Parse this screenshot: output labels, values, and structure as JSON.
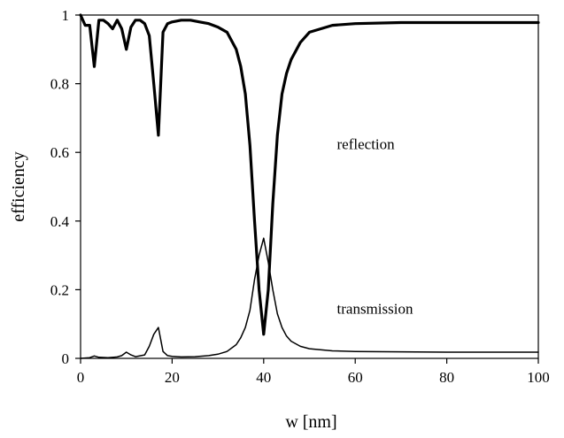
{
  "chart_data": {
    "type": "line",
    "xlabel": "w [nm]",
    "ylabel": "efficiency",
    "xlim": [
      0,
      100
    ],
    "ylim": [
      0,
      1
    ],
    "xticks": [
      0,
      20,
      40,
      60,
      80,
      100
    ],
    "yticks": [
      0,
      0.2,
      0.4,
      0.6,
      0.8,
      1
    ],
    "ytick_labels": [
      "0",
      "0.2",
      "0.4",
      "0.6",
      "0.8",
      "1"
    ],
    "grid": false,
    "legend": "none",
    "annotations": [
      {
        "text": "reflection",
        "x": 56,
        "y": 0.61
      },
      {
        "text": "transmission",
        "x": 56,
        "y": 0.13
      }
    ],
    "series": [
      {
        "color": "#000000",
        "line_weight": "thick",
        "x": [
          0,
          1,
          2,
          3,
          4,
          5,
          6,
          7,
          8,
          9,
          10,
          11,
          12,
          13,
          14,
          15,
          16,
          17,
          18,
          19,
          20,
          22,
          24,
          26,
          28,
          30,
          32,
          34,
          35,
          36,
          37,
          38,
          39,
          40,
          41,
          42,
          43,
          44,
          45,
          46,
          48,
          50,
          55,
          60,
          70,
          80,
          90,
          100
        ],
        "y": [
          1.0,
          0.97,
          0.97,
          0.85,
          0.985,
          0.985,
          0.975,
          0.96,
          0.985,
          0.96,
          0.9,
          0.965,
          0.985,
          0.985,
          0.975,
          0.94,
          0.8,
          0.65,
          0.95,
          0.975,
          0.98,
          0.985,
          0.985,
          0.98,
          0.975,
          0.965,
          0.95,
          0.9,
          0.85,
          0.77,
          0.62,
          0.4,
          0.2,
          0.07,
          0.2,
          0.45,
          0.65,
          0.77,
          0.83,
          0.87,
          0.92,
          0.95,
          0.97,
          0.975,
          0.978,
          0.978,
          0.978,
          0.978
        ]
      },
      {
        "color": "#000000",
        "line_weight": "thin",
        "x": [
          0,
          2,
          3,
          4,
          6,
          8,
          9,
          10,
          11,
          12,
          14,
          15,
          16,
          17,
          18,
          19,
          20,
          22,
          25,
          28,
          30,
          32,
          34,
          35,
          36,
          37,
          38,
          39,
          40,
          41,
          42,
          43,
          44,
          45,
          46,
          48,
          50,
          55,
          60,
          70,
          80,
          90,
          100
        ],
        "y": [
          0.0,
          0.002,
          0.007,
          0.003,
          0.002,
          0.004,
          0.008,
          0.018,
          0.01,
          0.005,
          0.01,
          0.035,
          0.07,
          0.09,
          0.02,
          0.008,
          0.006,
          0.004,
          0.005,
          0.008,
          0.012,
          0.02,
          0.04,
          0.06,
          0.09,
          0.14,
          0.23,
          0.3,
          0.35,
          0.28,
          0.2,
          0.13,
          0.09,
          0.065,
          0.05,
          0.035,
          0.028,
          0.022,
          0.02,
          0.019,
          0.018,
          0.018,
          0.018
        ]
      }
    ]
  }
}
